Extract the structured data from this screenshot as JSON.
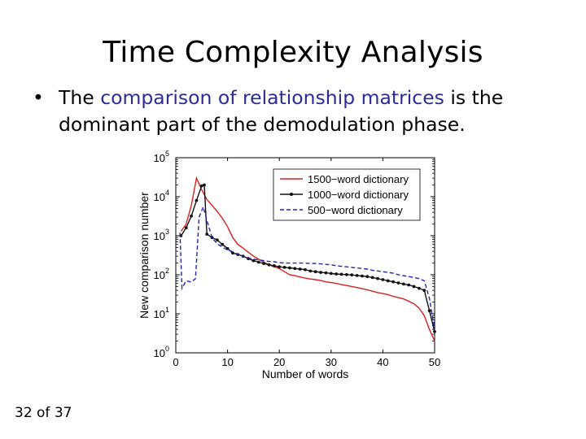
{
  "slide": {
    "title": "Time Complexity Analysis",
    "bullet_prefix": "The ",
    "bullet_highlight": "comparison of relationship matrices",
    "bullet_suffix": " is the dominant part of the demodulation phase.",
    "page_label": "32 of 37"
  },
  "colors": {
    "highlight": "#2b2b9a"
  },
  "chart_data": {
    "type": "line",
    "xlabel": "Number of words",
    "ylabel": "New comparison number",
    "xlim": [
      0,
      50
    ],
    "ylim": [
      1,
      100000
    ],
    "yscale": "log",
    "x_ticks": [
      0,
      10,
      20,
      30,
      40,
      50
    ],
    "y_ticks": [
      {
        "value": 1,
        "base": "10",
        "exp": "0"
      },
      {
        "value": 10,
        "base": "10",
        "exp": "1"
      },
      {
        "value": 100,
        "base": "10",
        "exp": "2"
      },
      {
        "value": 1000,
        "base": "10",
        "exp": "3"
      },
      {
        "value": 10000,
        "base": "10",
        "exp": "4"
      },
      {
        "value": 100000,
        "base": "10",
        "exp": "5"
      }
    ],
    "legend_position": "top-right",
    "series": [
      {
        "name": "1500−word dictionary",
        "color": "#d62020",
        "style": "solid",
        "marker": false,
        "x": [
          1,
          2,
          3,
          4,
          5,
          6,
          7,
          8,
          9,
          10,
          11,
          12,
          13,
          14,
          15,
          16,
          17,
          18,
          19,
          20,
          21,
          22,
          23,
          24,
          25,
          26,
          27,
          28,
          29,
          30,
          31,
          32,
          33,
          34,
          35,
          36,
          37,
          38,
          39,
          40,
          41,
          42,
          43,
          44,
          45,
          46,
          47,
          48,
          49,
          50
        ],
        "y": [
          1300,
          2000,
          6000,
          30000,
          15000,
          8500,
          6000,
          4200,
          2800,
          1700,
          900,
          600,
          480,
          380,
          300,
          250,
          210,
          180,
          160,
          145,
          120,
          100,
          95,
          88,
          82,
          78,
          75,
          71,
          66,
          63,
          60,
          56,
          53,
          50,
          47,
          44,
          41,
          38,
          35,
          33,
          31,
          28,
          26,
          24,
          21,
          18,
          14,
          9,
          4,
          2
        ]
      },
      {
        "name": "1000−word dictionary",
        "color": "#111111",
        "style": "solid",
        "marker": true,
        "x": [
          1,
          2,
          3,
          4,
          5,
          5.5,
          6,
          7,
          8,
          9,
          10,
          11,
          12,
          13,
          14,
          15,
          16,
          17,
          18,
          19,
          20,
          21,
          22,
          23,
          24,
          25,
          26,
          27,
          28,
          29,
          30,
          31,
          32,
          33,
          34,
          35,
          36,
          37,
          38,
          39,
          40,
          41,
          42,
          43,
          44,
          45,
          46,
          47,
          48,
          49,
          50
        ],
        "y": [
          1000,
          1600,
          3200,
          8000,
          19000,
          20000,
          1100,
          900,
          780,
          600,
          470,
          360,
          330,
          300,
          260,
          230,
          210,
          195,
          180,
          170,
          160,
          155,
          150,
          145,
          140,
          135,
          125,
          120,
          115,
          112,
          108,
          105,
          103,
          101,
          99,
          96,
          93,
          90,
          85,
          80,
          75,
          70,
          66,
          62,
          58,
          55,
          50,
          45,
          40,
          12,
          3.5
        ]
      },
      {
        "name": "500−word dictionary",
        "color": "#2424b4",
        "style": "dashed",
        "marker": false,
        "x": [
          0.8,
          1.2,
          2,
          3,
          3.8,
          4.5,
          5.3,
          6,
          7,
          8,
          9,
          10,
          11,
          12,
          13,
          14,
          15,
          16,
          17,
          18,
          19,
          20,
          21,
          22,
          23,
          24,
          25,
          26,
          27,
          28,
          29,
          30,
          31,
          32,
          33,
          34,
          35,
          36,
          37,
          38,
          39,
          40,
          41,
          42,
          43,
          44,
          45,
          46,
          47,
          48,
          49,
          50
        ],
        "y": [
          1200,
          45,
          70,
          65,
          80,
          3000,
          5500,
          2500,
          900,
          620,
          510,
          430,
          390,
          330,
          300,
          270,
          250,
          240,
          230,
          220,
          215,
          205,
          200,
          200,
          200,
          200,
          200,
          195,
          195,
          190,
          185,
          180,
          170,
          165,
          160,
          155,
          150,
          145,
          140,
          130,
          125,
          120,
          115,
          110,
          100,
          95,
          90,
          85,
          80,
          70,
          25,
          4
        ]
      }
    ]
  }
}
